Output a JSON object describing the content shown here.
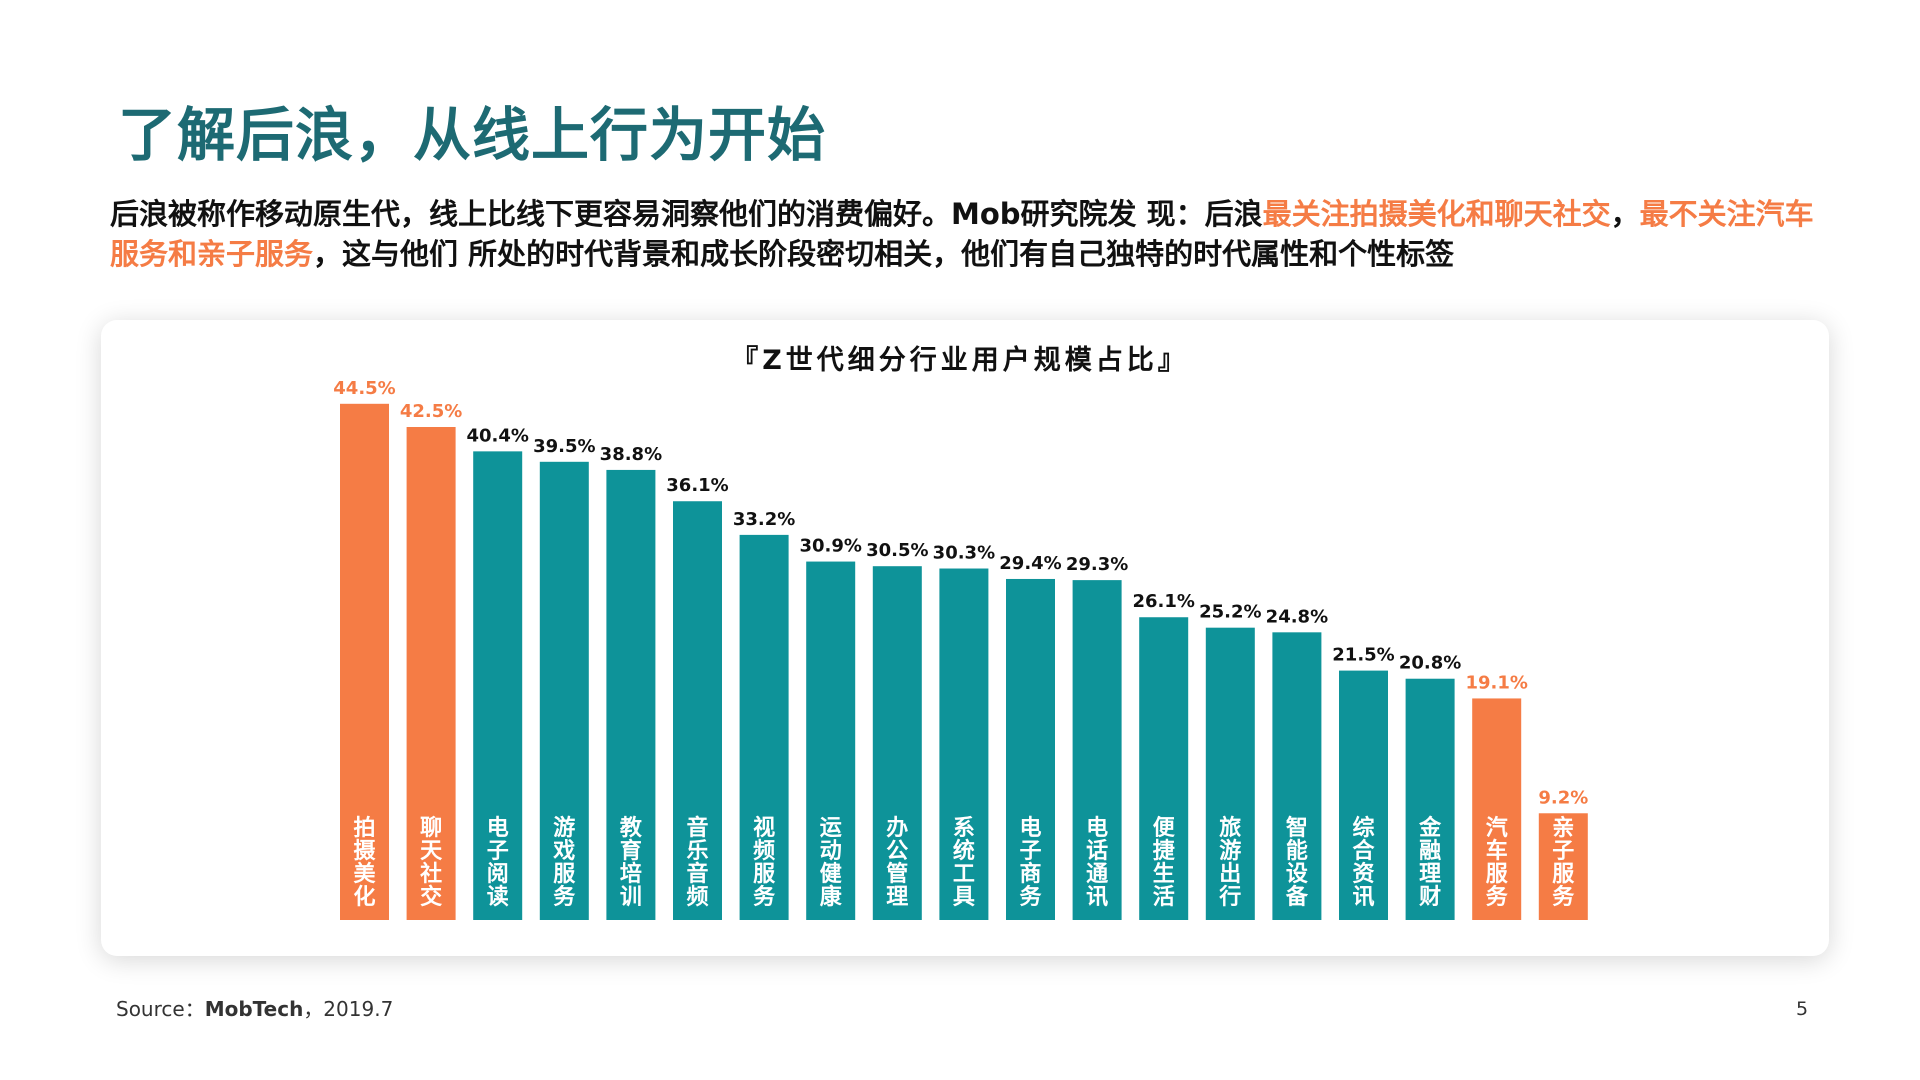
{
  "slide": {
    "title": "了解后浪，从线上行为开始",
    "desc_part1": "后浪被称作移动原生代，线上比线下更容易洞察他们的消费偏好。Mob研究院发 现：后浪",
    "desc_highlight1": "最关注拍摄美化和聊天社交",
    "desc_part2": "，",
    "desc_highlight2": "最不关注汽车服务和亲子服务",
    "desc_part3": "，这与他们 所处的时代背景和成长阶段密切相关，他们有自己独特的时代属性和个性标签",
    "source_prefix": "Source：",
    "source_name": "MobTech",
    "source_suffix": "，2019.7",
    "page_number": "5"
  },
  "colors": {
    "title": "#1d6a73",
    "highlight": "#f57c45",
    "bar_teal": "#0e9399",
    "bar_orange": "#f57c45"
  },
  "chart_data": {
    "type": "bar",
    "title": "『Z世代细分行业用户规模占比』",
    "categories": [
      "拍摄美化",
      "聊天社交",
      "电子阅读",
      "游戏服务",
      "教育培训",
      "音乐音频",
      "视频服务",
      "运动健康",
      "办公管理",
      "系统工具",
      "电子商务",
      "电话通讯",
      "便捷生活",
      "旅游出行",
      "智能设备",
      "综合资讯",
      "金融理财",
      "汽车服务",
      "亲子服务"
    ],
    "values": [
      44.5,
      42.5,
      40.4,
      39.5,
      38.8,
      36.1,
      33.2,
      30.9,
      30.5,
      30.3,
      29.4,
      29.3,
      26.1,
      25.2,
      24.8,
      21.5,
      20.8,
      19.1,
      9.2
    ],
    "labels": [
      "44.5%",
      "42.5%",
      "40.4%",
      "39.5%",
      "38.8%",
      "36.1%",
      "33.2%",
      "30.9%",
      "30.5%",
      "30.3%",
      "29.4%",
      "29.3%",
      "26.1%",
      "25.2%",
      "24.8%",
      "21.5%",
      "20.8%",
      "19.1%",
      "9.2%"
    ],
    "highlighted": [
      true,
      true,
      false,
      false,
      false,
      false,
      false,
      false,
      false,
      false,
      false,
      false,
      false,
      false,
      false,
      false,
      false,
      true,
      true
    ],
    "unit": "%",
    "grid": false,
    "legend": "none"
  }
}
